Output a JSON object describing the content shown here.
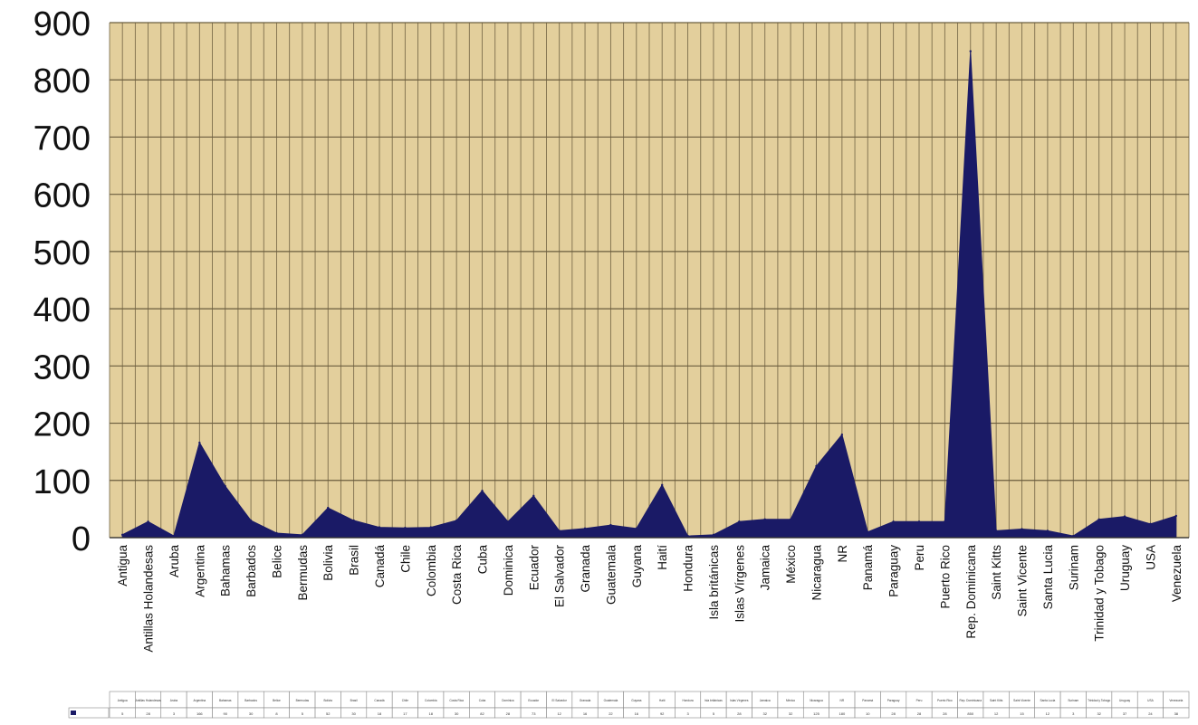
{
  "chart_data": {
    "type": "area",
    "title": "",
    "xlabel": "",
    "ylabel": "",
    "ylim": [
      0,
      900
    ],
    "yticks": [
      0,
      100,
      200,
      300,
      400,
      500,
      600,
      700,
      800,
      900
    ],
    "grid": true,
    "legend": "data table below",
    "colors": {
      "area": "#1a1a66",
      "plot_background": "#e3cf9c",
      "grid": "#6b5d3e"
    },
    "categories": [
      "Antigua",
      "Antillas Holandesas",
      "Aruba",
      "Argentina",
      "Bahamas",
      "Barbados",
      "Belice",
      "Bermudas",
      "Bolivia",
      "Brasil",
      "Canadá",
      "Chile",
      "Colombia",
      "Costa Rica",
      "Cuba",
      "Dominica",
      "Ecuador",
      "El Salvador",
      "Granada",
      "Guatemala",
      "Guyana",
      "Haití",
      "Hondura",
      "Isla británicas",
      "Islas Vírgenes",
      "Jamaica",
      "México",
      "Nicaragua",
      "NR",
      "Panamá",
      "Paraguay",
      "Peru",
      "Puerto Rico",
      "Rep. Dominicana",
      "Saint Kitts",
      "Saint Vicente",
      "Santa Lucia",
      "Surinam",
      "Trinidad y Tobago",
      "Uruguay",
      "USA",
      "Venezuela"
    ],
    "series": [
      {
        "values": [
          5,
          28,
          3,
          166,
          90,
          30,
          8,
          5,
          52,
          30,
          18,
          17,
          18,
          30,
          82,
          28,
          73,
          12,
          16,
          22,
          16,
          92,
          3,
          5,
          28,
          32,
          32,
          125,
          180,
          10,
          28,
          28,
          28,
          850,
          12,
          15,
          12,
          3,
          32,
          37,
          24,
          38
        ]
      }
    ]
  }
}
